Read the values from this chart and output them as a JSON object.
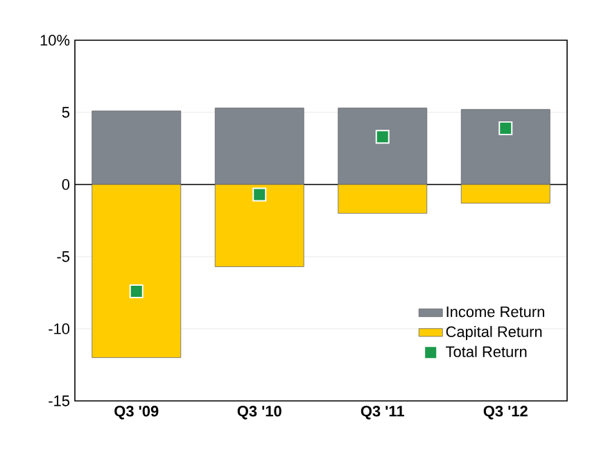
{
  "chart_data": {
    "type": "bar",
    "stacked": true,
    "categories": [
      "Q3 '09",
      "Q3 '10",
      "Q3 '11",
      "Q3 '12"
    ],
    "series": [
      {
        "name": "Income Return",
        "color": "#7f868e",
        "values": [
          5.1,
          5.3,
          5.3,
          5.2
        ]
      },
      {
        "name": "Capital Return",
        "color": "#ffcc00",
        "values": [
          -12.0,
          -5.7,
          -2.0,
          -1.3
        ]
      },
      {
        "name": "Total Return",
        "type": "scatter",
        "marker": "square",
        "color": "#1a9a4a",
        "values": [
          -7.4,
          -0.7,
          3.3,
          3.9
        ]
      }
    ],
    "ylim": [
      -15,
      10
    ],
    "yticks": [
      -15,
      -10,
      -5,
      0,
      5,
      {
        "value": 10,
        "label": "10%"
      }
    ],
    "grid": "y",
    "legend": "bottom right"
  }
}
